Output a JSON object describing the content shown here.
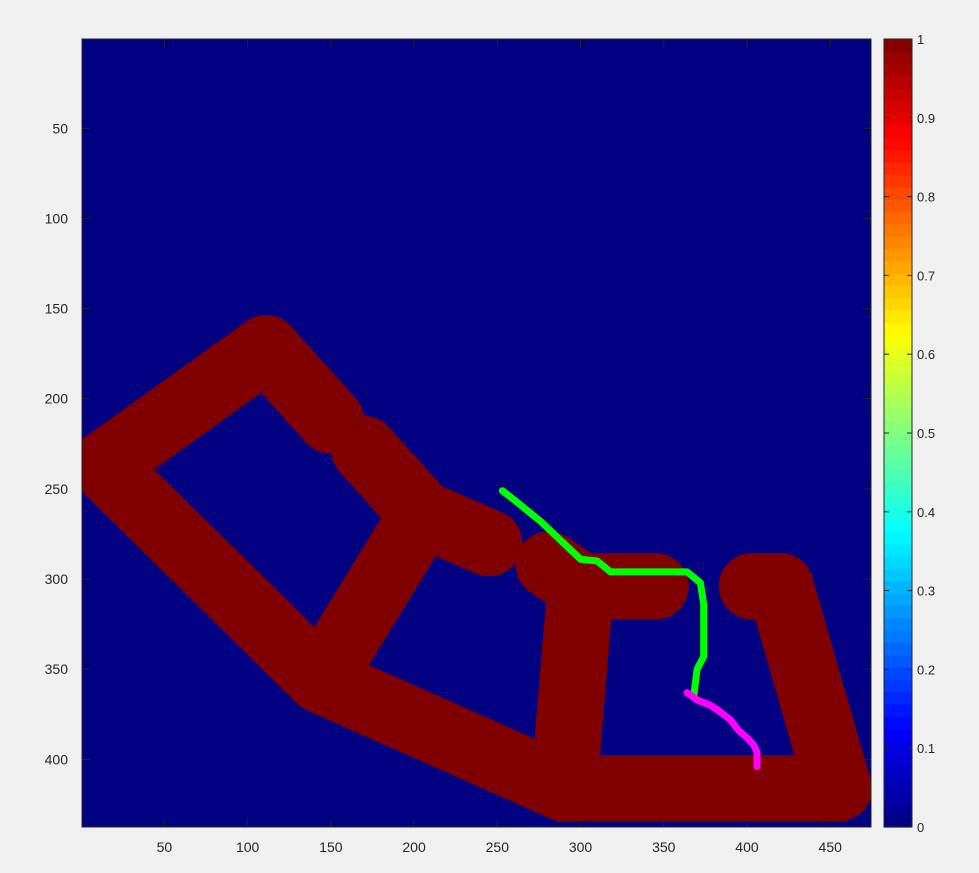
{
  "chart_data": {
    "type": "heatmap",
    "title": "",
    "xlabel": "",
    "ylabel": "",
    "xlim": [
      0.5,
      474.5
    ],
    "ylim": [
      0.5,
      437.5
    ],
    "y_reversed": true,
    "colormap": "jet",
    "clim": [
      0,
      1
    ],
    "x_ticks": [
      50,
      100,
      150,
      200,
      250,
      300,
      350,
      400,
      450
    ],
    "y_ticks": [
      50,
      100,
      150,
      200,
      250,
      300,
      350,
      400
    ],
    "colorbar_ticks": [
      0,
      0.1,
      0.2,
      0.3,
      0.4,
      0.5,
      0.6,
      0.7,
      0.8,
      0.9,
      1
    ],
    "background_value": 0,
    "structure": {
      "value": 1,
      "thickness": 40,
      "segments": [
        [
          [
            13,
            237
          ],
          [
            111,
            172
          ]
        ],
        [
          [
            111,
            172
          ],
          [
            150,
            212
          ]
        ],
        [
          [
            170,
            228
          ],
          [
            205,
            264
          ]
        ],
        [
          [
            205,
            264
          ],
          [
            245,
            280
          ]
        ],
        [
          [
            205,
            264
          ],
          [
            144,
            356
          ]
        ],
        [
          [
            13,
            237
          ],
          [
            144,
            356
          ]
        ],
        [
          [
            144,
            356
          ],
          [
            290,
            416
          ]
        ],
        [
          [
            290,
            416
          ],
          [
            455,
            416
          ]
        ],
        [
          [
            281,
            292
          ],
          [
            300,
            304
          ]
        ],
        [
          [
            300,
            304
          ],
          [
            345,
            304
          ]
        ],
        [
          [
            300,
            304
          ],
          [
            290,
            416
          ]
        ],
        [
          [
            403,
            304
          ],
          [
            420,
            304
          ]
        ],
        [
          [
            420,
            304
          ],
          [
            455,
            416
          ]
        ]
      ]
    },
    "paths": [
      {
        "color": "#00ff00",
        "points": [
          [
            253,
            251
          ],
          [
            260,
            256
          ],
          [
            268,
            262
          ],
          [
            276,
            268
          ],
          [
            284,
            275
          ],
          [
            292,
            282
          ],
          [
            300,
            289
          ],
          [
            310,
            290
          ],
          [
            318,
            296
          ],
          [
            330,
            296
          ],
          [
            350,
            296
          ],
          [
            364,
            296
          ],
          [
            372,
            302
          ],
          [
            374,
            314
          ],
          [
            374,
            328
          ],
          [
            374,
            343
          ],
          [
            370,
            350
          ],
          [
            368,
            365
          ]
        ]
      },
      {
        "color": "#ff00ff",
        "points": [
          [
            364,
            363
          ],
          [
            370,
            367
          ],
          [
            378,
            370
          ],
          [
            383,
            373
          ],
          [
            390,
            378
          ],
          [
            395,
            384
          ],
          [
            400,
            388
          ],
          [
            404,
            392
          ],
          [
            406,
            396
          ],
          [
            406,
            404
          ]
        ]
      }
    ]
  }
}
